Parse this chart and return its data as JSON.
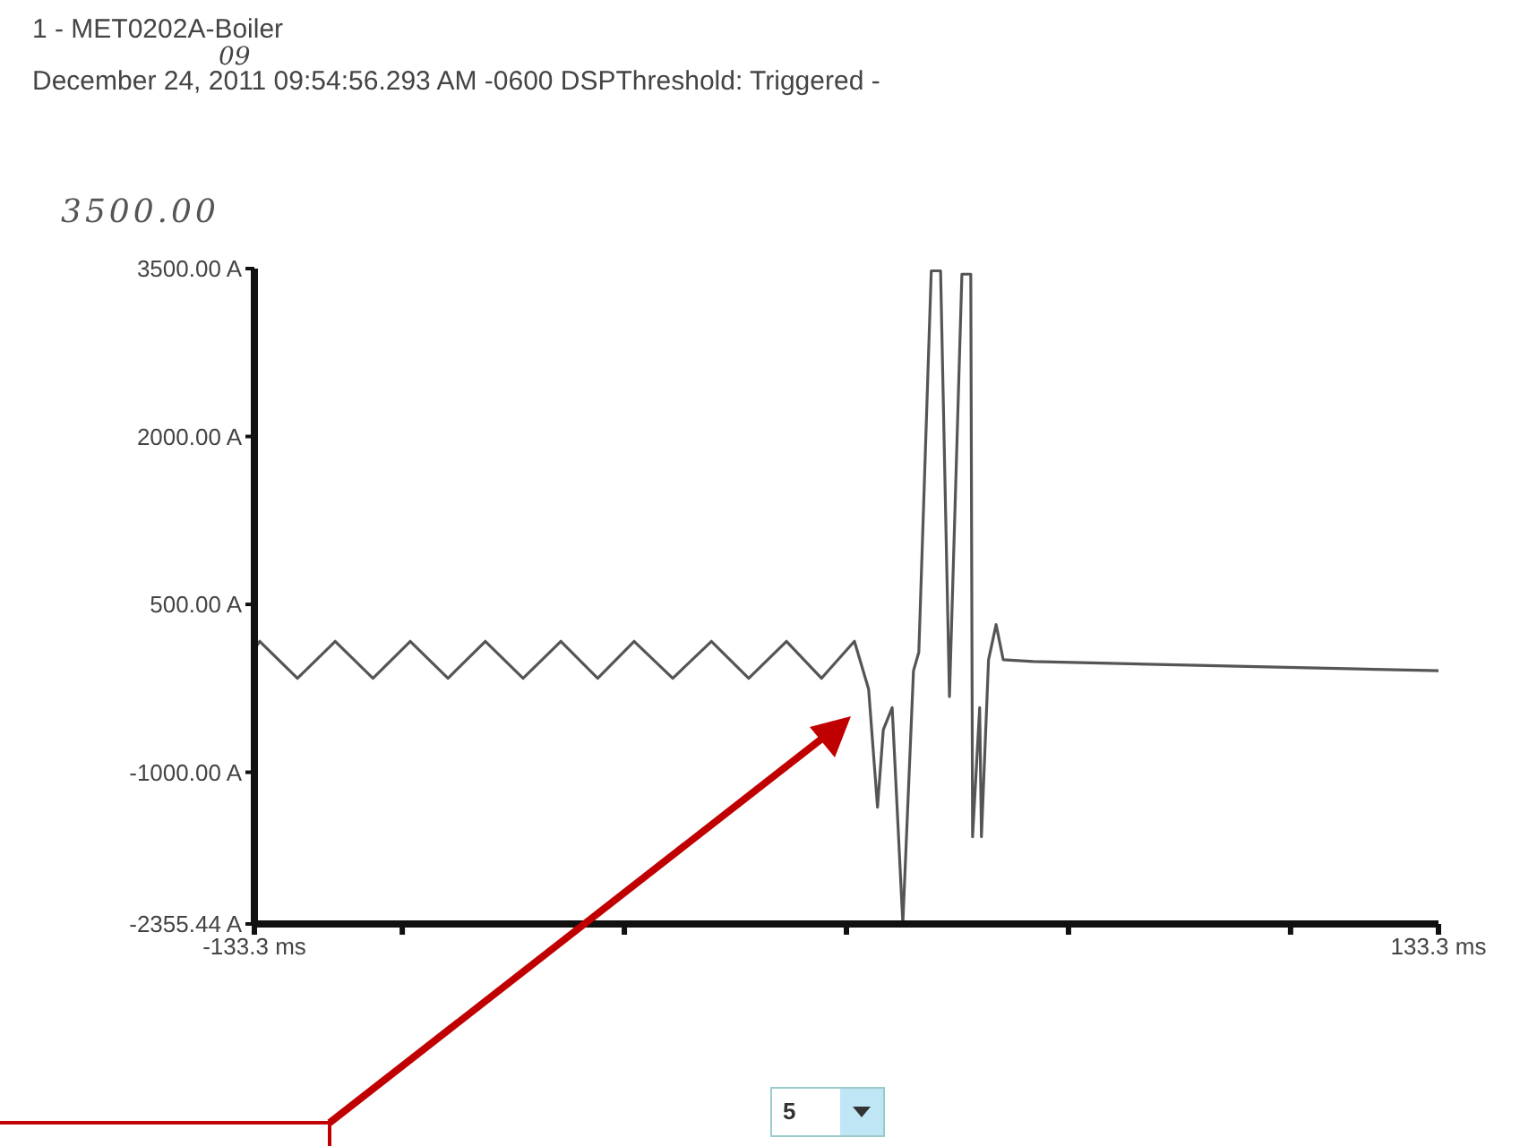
{
  "chart_data": {
    "type": "line",
    "title": "1 - MET0202A-Boiler",
    "subtitle": "December 24, 2011 09:54:56.293 AM -0600 DSPThreshold: Triggered -",
    "annotations": [
      "3500.00",
      "09",
      "5"
    ],
    "x": [
      -133.3,
      -132.1,
      -123.6,
      -115.1,
      -106.6,
      -98.2,
      -89.7,
      -81.3,
      -72.8,
      -64.3,
      -56,
      -47.8,
      -39.1,
      -30.4,
      -22,
      -13.5,
      -5.6,
      1.8,
      5,
      7,
      8.3,
      10.3,
      12.7,
      15.1,
      16.3,
      19.1,
      21.2,
      23.2,
      26,
      28,
      28.4,
      30,
      30.4,
      32,
      33.7,
      35.3,
      42.1,
      133.3
    ],
    "series": [
      {
        "color": "#555555",
        "values": [
          100,
          170,
          -160,
          170,
          -160,
          170,
          -160,
          170,
          -160,
          170,
          -160,
          170,
          -160,
          170,
          -160,
          170,
          -160,
          170,
          -258,
          -1313,
          -621,
          -423,
          -2350,
          -93,
          72,
          3480,
          3480,
          -324,
          3450,
          3450,
          -1576,
          -423,
          -1576,
          6,
          319,
          6,
          -11,
          -93
        ]
      }
    ],
    "xlim": [
      -133.3,
      133.3
    ],
    "xticks": [
      {
        "value": -133.3,
        "label": "-133.3 ms"
      },
      {
        "value": -100,
        "label": null
      },
      {
        "value": -50,
        "label": null
      },
      {
        "value": 0,
        "label": null
      },
      {
        "value": 50,
        "label": null
      },
      {
        "value": 100,
        "label": null
      },
      {
        "value": 133.3,
        "label": "133.3 ms"
      }
    ],
    "ylim": [
      -2355.44,
      3500
    ],
    "yticks": [
      {
        "value": -2355.44,
        "label": "-2355.44 A"
      },
      {
        "value": -1000,
        "label": "-1000.00 A"
      },
      {
        "value": 500,
        "label": "500.00 A"
      },
      {
        "value": 2000,
        "label": "2000.00 A"
      },
      {
        "value": 3500,
        "label": "3500.00 A"
      }
    ],
    "grid": false,
    "legend": false,
    "marker": "none",
    "line_style": "solid"
  }
}
